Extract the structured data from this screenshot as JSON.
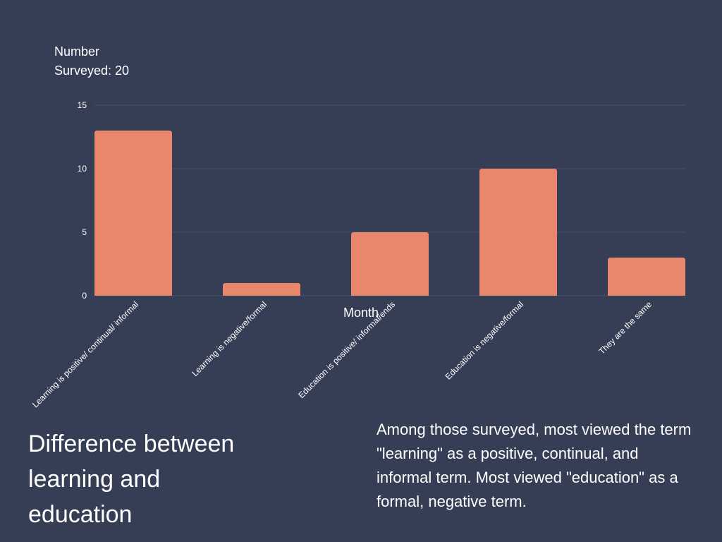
{
  "chart_data": {
    "type": "bar",
    "ylabel": "Number\nSurveyed: 20",
    "xlabel": "Month",
    "categories": [
      "Learning is positive/ continual/ informal",
      "Learning is negative/formal",
      "Education is positive/ informal/ends",
      "Education is negative/formal",
      "They are the same"
    ],
    "values": [
      13,
      1,
      5,
      10,
      3
    ],
    "ylim": [
      0,
      15
    ],
    "yticks": [
      0,
      5,
      10,
      15
    ],
    "bar_color": "#e9876c",
    "grid_color": "#4b536a"
  },
  "title": "Difference between learning and education",
  "description": "Among those surveyed, most viewed the term \"learning\" as a positive, continual, and informal term. Most viewed \"education\" as a formal, negative term."
}
